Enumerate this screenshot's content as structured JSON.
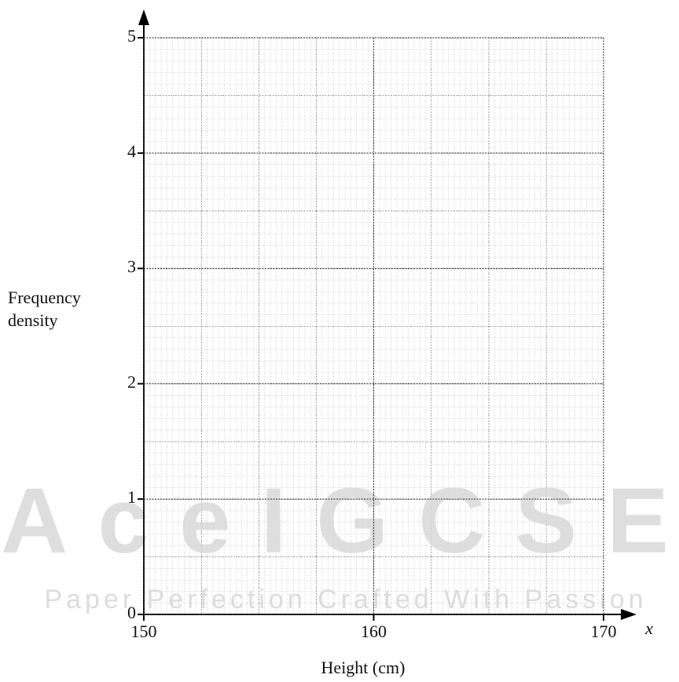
{
  "chart_data": {
    "type": "histogram",
    "x_label": "Height (cm)",
    "y_label": "Frequency density",
    "x_axis_symbol": "x",
    "xlim": [
      150,
      170
    ],
    "ylim": [
      0,
      5
    ],
    "xticks": [
      150,
      160,
      170
    ],
    "yticks": [
      0,
      1,
      2,
      3,
      4,
      5
    ],
    "grid": true
  },
  "watermark": {
    "logo_text": "AceIGCSE",
    "tagline": "Paper Perfection Crafted With Passion"
  }
}
